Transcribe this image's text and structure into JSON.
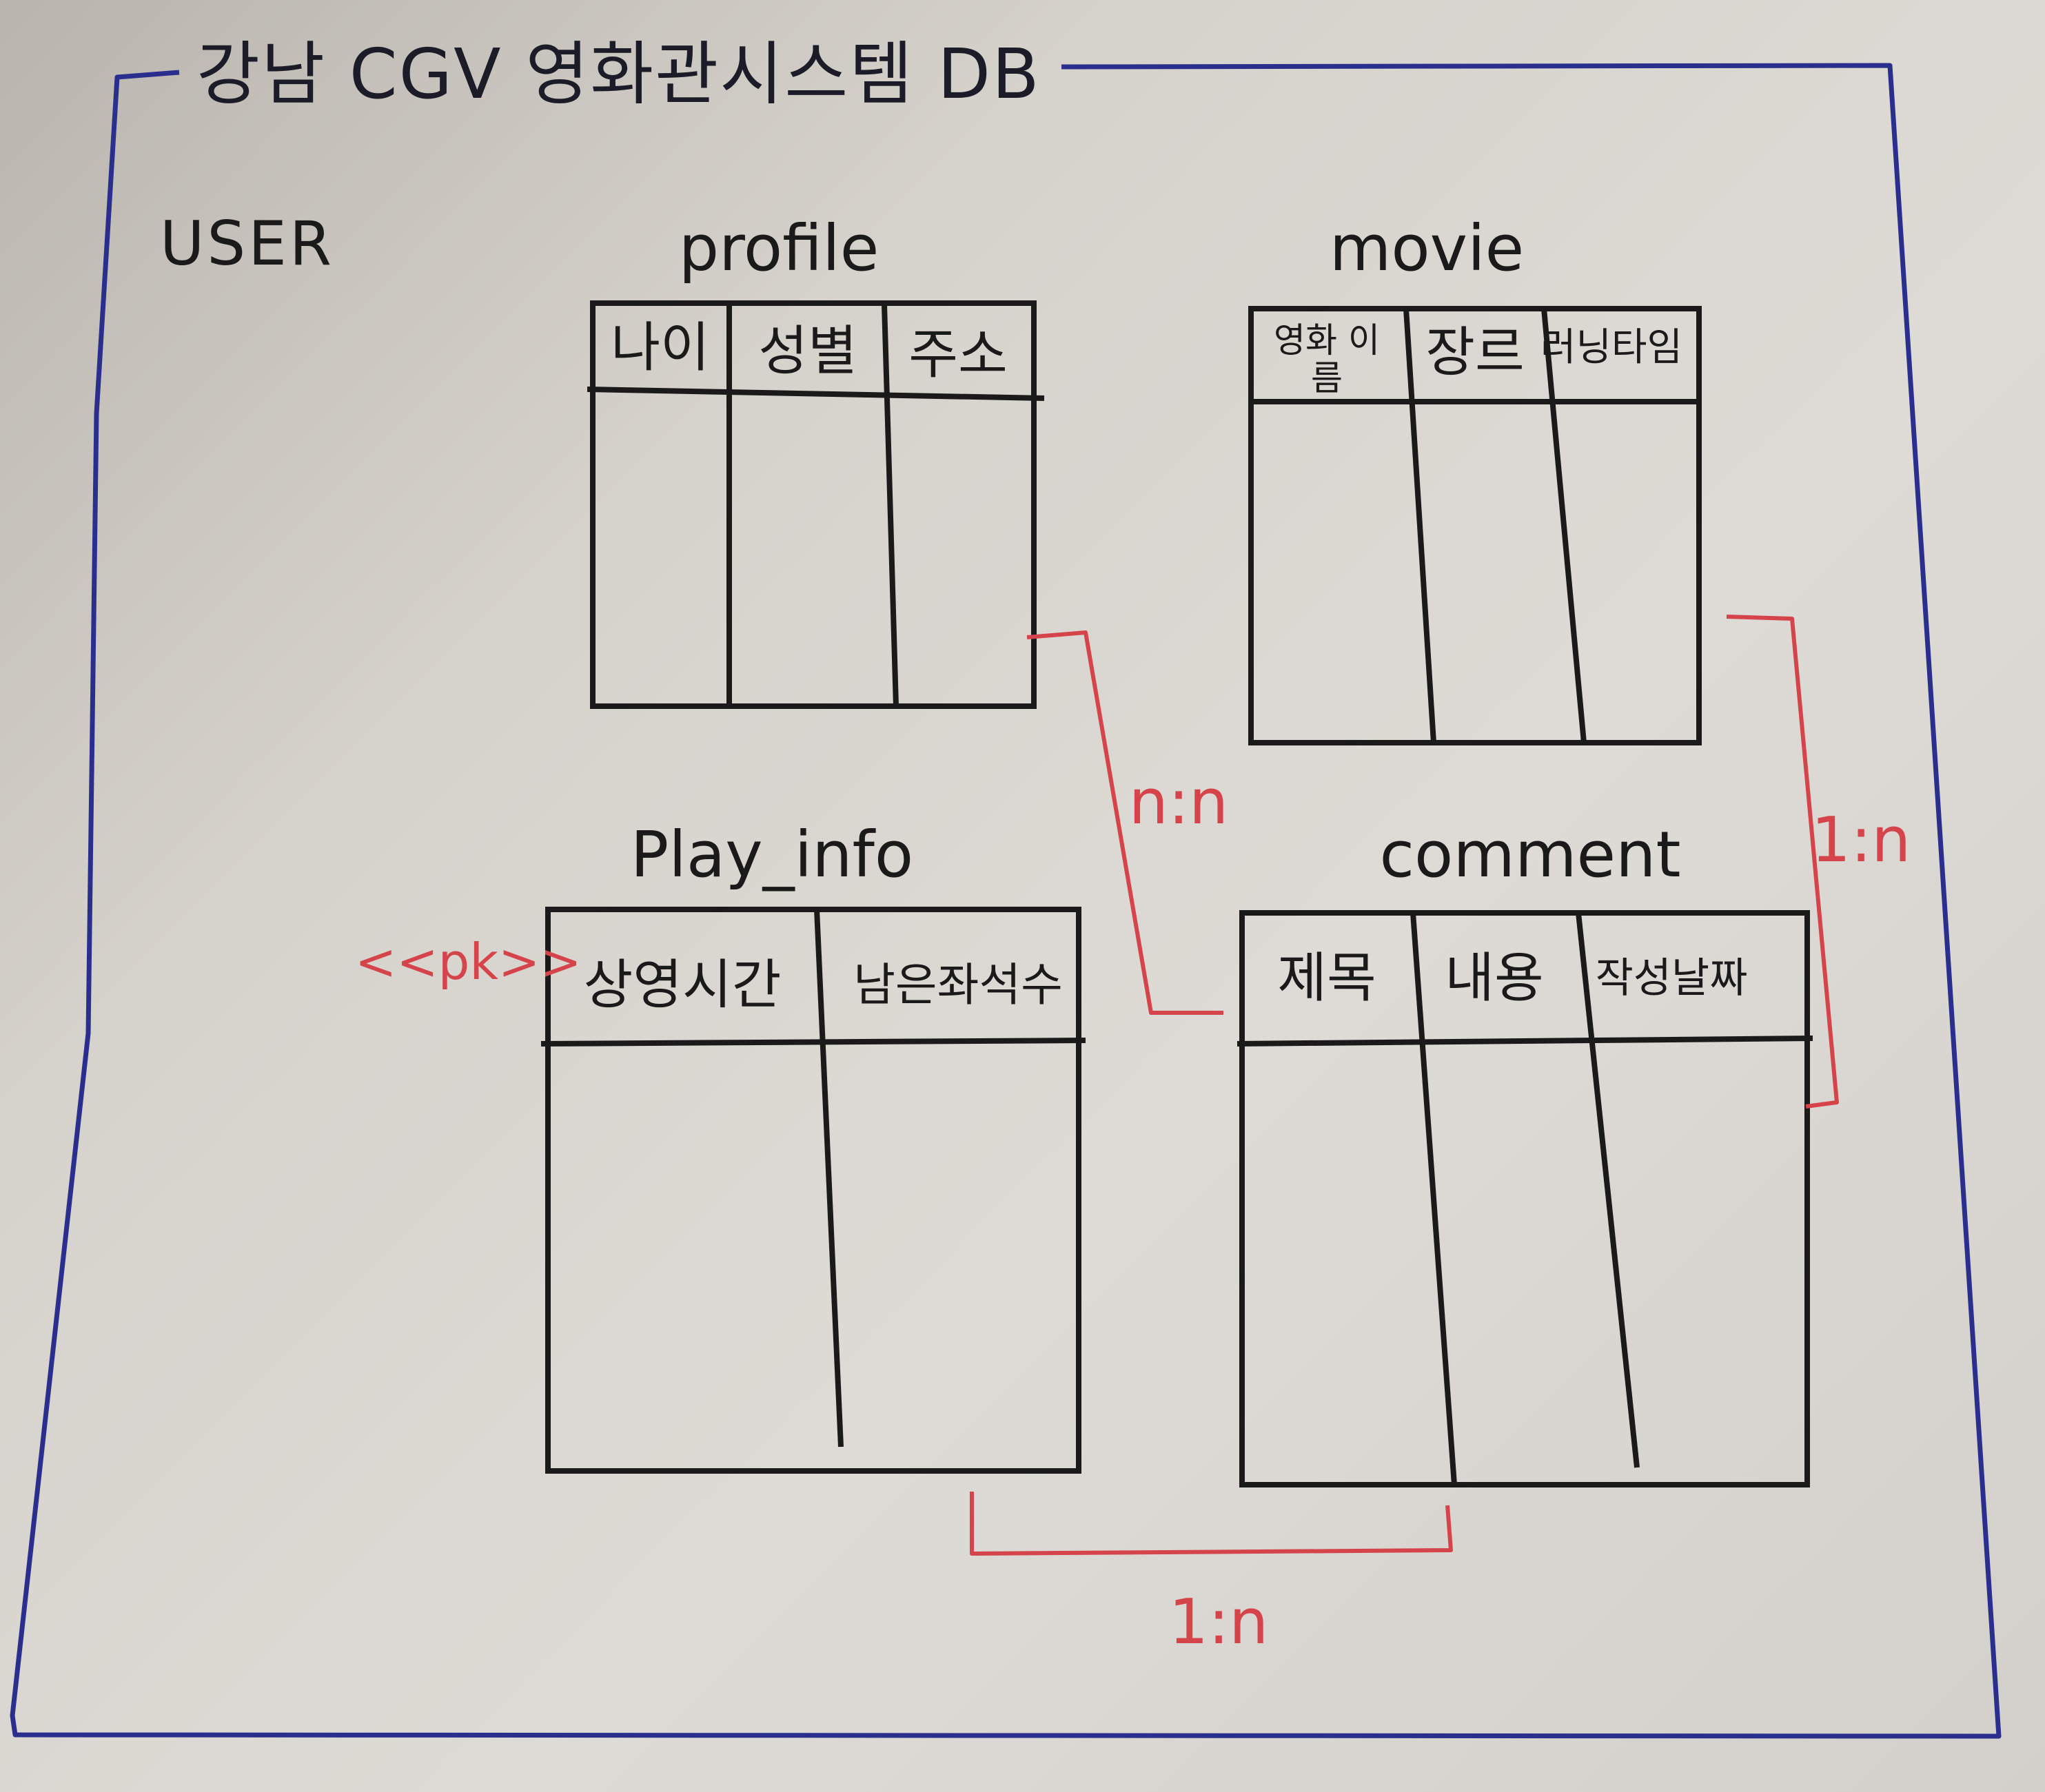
{
  "diagram": {
    "title": "강남 CGV 영화관시스템 DB",
    "group_label": "USER",
    "colors": {
      "frame": "#2a2f8e",
      "table_line": "#1a1a1a",
      "relation": "#d4444a"
    },
    "tables": {
      "profile": {
        "name": "profile",
        "columns": [
          "나이",
          "성별",
          "주소"
        ]
      },
      "movie": {
        "name": "movie",
        "columns": [
          "영화 이름",
          "장르",
          "러닝타임"
        ]
      },
      "play_info": {
        "name": "Play_info",
        "columns": [
          "상영시간",
          "남은좌석수"
        ],
        "key_marker": "<<pk>>"
      },
      "comment": {
        "name": "comment",
        "columns": [
          "제목",
          "내용",
          "작성날짜"
        ]
      }
    },
    "relations": [
      {
        "from": "profile",
        "to": "comment",
        "label": "n:n"
      },
      {
        "from": "movie",
        "to": "comment",
        "label": "1:n"
      },
      {
        "from": "play_info",
        "to": "comment",
        "label": "1:n"
      }
    ]
  }
}
